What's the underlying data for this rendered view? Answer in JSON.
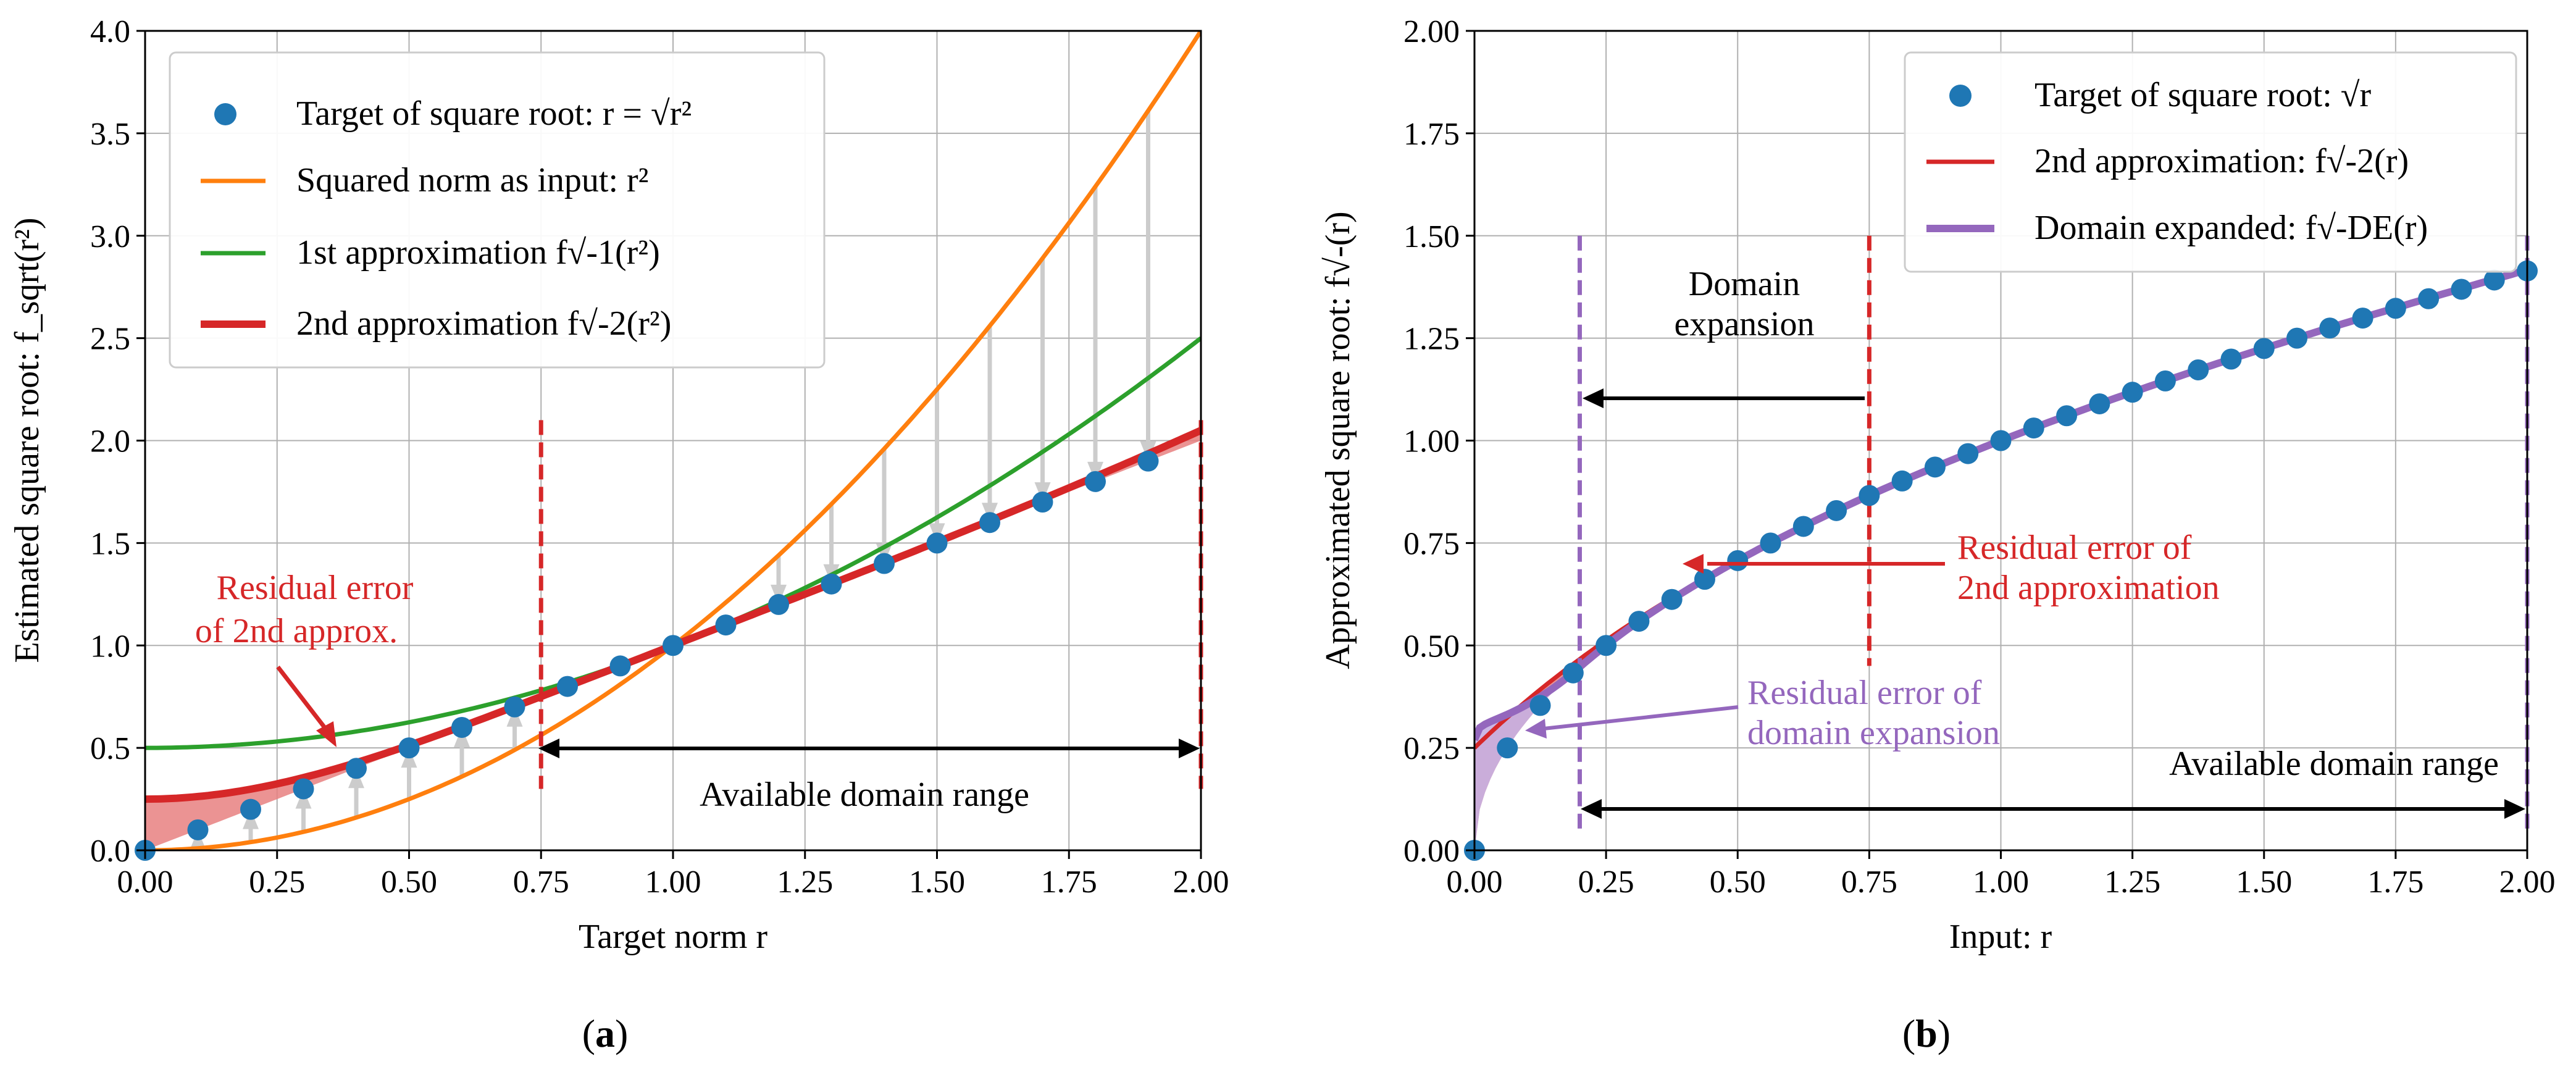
{
  "panels": {
    "a": {
      "label_open": "(",
      "label_letter": "a",
      "label_close": ")"
    },
    "b": {
      "label_open": "(",
      "label_letter": "b",
      "label_close": ")"
    }
  },
  "chart_data": [
    {
      "type": "line",
      "id": "a",
      "title": "",
      "xlabel": "Target norm r",
      "ylabel": "Estimated square root: f_sqrt(r²)",
      "xlim": [
        0,
        2
      ],
      "ylim": [
        0,
        4
      ],
      "xticks": [
        "0.00",
        "0.25",
        "0.50",
        "0.75",
        "1.00",
        "1.25",
        "1.50",
        "1.75",
        "2.00"
      ],
      "yticks": [
        "0.0",
        "0.5",
        "1.0",
        "1.5",
        "2.0",
        "2.5",
        "3.0",
        "3.5",
        "4.0"
      ],
      "grid": true,
      "legend_position": "top-left",
      "series": [
        {
          "name": "Target of square root: r = √r²",
          "kind": "scatter",
          "color": "#1f77b4",
          "x": [
            0,
            0.1,
            0.2,
            0.3,
            0.4,
            0.5,
            0.6,
            0.7,
            0.8,
            0.9,
            1.0,
            1.1,
            1.2,
            1.3,
            1.4,
            1.5,
            1.6,
            1.7,
            1.8,
            1.9
          ],
          "y": [
            0,
            0.1,
            0.2,
            0.3,
            0.4,
            0.5,
            0.6,
            0.7,
            0.8,
            0.9,
            1.0,
            1.1,
            1.2,
            1.3,
            1.4,
            1.5,
            1.6,
            1.7,
            1.8,
            1.9
          ]
        },
        {
          "name": "Squared norm as input: r²",
          "kind": "line",
          "color": "#ff7f0e",
          "formula": "r^2"
        },
        {
          "name": "1st approximation f√-1(r²)",
          "kind": "line",
          "color": "#2ca02c",
          "formula": "(1+r^2)/2"
        },
        {
          "name": "2nd approximation f√-2(r²)",
          "kind": "line",
          "color": "#d62728",
          "formula": "((1+r^2)/2 + 2r^2/(1+r^2))/2"
        }
      ],
      "legend": [
        "Target of square root: r = √r²",
        "Squared norm as input: r²",
        "1st approximation f√-1(r²)",
        "2nd approximation f√-2(r²)"
      ],
      "vertical_lines": [
        0.75,
        2.0
      ],
      "arrows_x": [
        0.1,
        0.2,
        0.3,
        0.4,
        0.5,
        0.6,
        0.7,
        1.2,
        1.3,
        1.4,
        1.5,
        1.6,
        1.7,
        1.8,
        1.9
      ],
      "annotations": {
        "residual_line1": "Residual error",
        "residual_line2": "of 2nd approx.",
        "domain": "Available domain range"
      }
    },
    {
      "type": "line",
      "id": "b",
      "title": "",
      "xlabel": "Input: r",
      "ylabel": "Approximated square root: f√-(r)",
      "xlim": [
        0,
        2
      ],
      "ylim": [
        0,
        2
      ],
      "xticks": [
        "0.00",
        "0.25",
        "0.50",
        "0.75",
        "1.00",
        "1.25",
        "1.50",
        "1.75",
        "2.00"
      ],
      "yticks": [
        "0.00",
        "0.25",
        "0.50",
        "0.75",
        "1.00",
        "1.25",
        "1.50",
        "1.75",
        "2.00"
      ],
      "grid": true,
      "legend_position": "top-right",
      "series": [
        {
          "name": "Target of square root: √r",
          "kind": "scatter",
          "color": "#1f77b4",
          "formula": "sqrt(r)",
          "n_points": 33
        },
        {
          "name": "2nd approximation: f√-2(r)",
          "kind": "line",
          "color": "#d62728",
          "formula": "((1+r)/2 + 2r/(1+r))/2"
        },
        {
          "name": "Domain expanded: f√-DE(r)",
          "kind": "line",
          "color": "#9467bd",
          "formula": "piecewise: 2nd approx scaled on [0,0.75]"
        }
      ],
      "legend": [
        "Target of square root: √r",
        "2nd approximation: f√-2(r)",
        "Domain expanded: f√-DE(r)"
      ],
      "vertical_lines_purple": [
        0.2,
        2.0
      ],
      "vertical_lines_red": [
        0.75
      ],
      "annotations": {
        "domain_exp_line1": "Domain",
        "domain_exp_line2": "expansion",
        "residual2_line1": "Residual error of",
        "residual2_line2": "2nd approximation",
        "residual_de_line1": "Residual error of",
        "residual_de_line2": "domain expansion",
        "domain": "Available domain range"
      }
    }
  ],
  "colors": {
    "blue": "#1f77b4",
    "orange": "#ff7f0e",
    "green": "#2ca02c",
    "red": "#d62728",
    "purple": "#9467bd",
    "fill_red": "#e88080",
    "fill_purple": "#c6b0e2",
    "grey_arrow": "#cccccc"
  }
}
